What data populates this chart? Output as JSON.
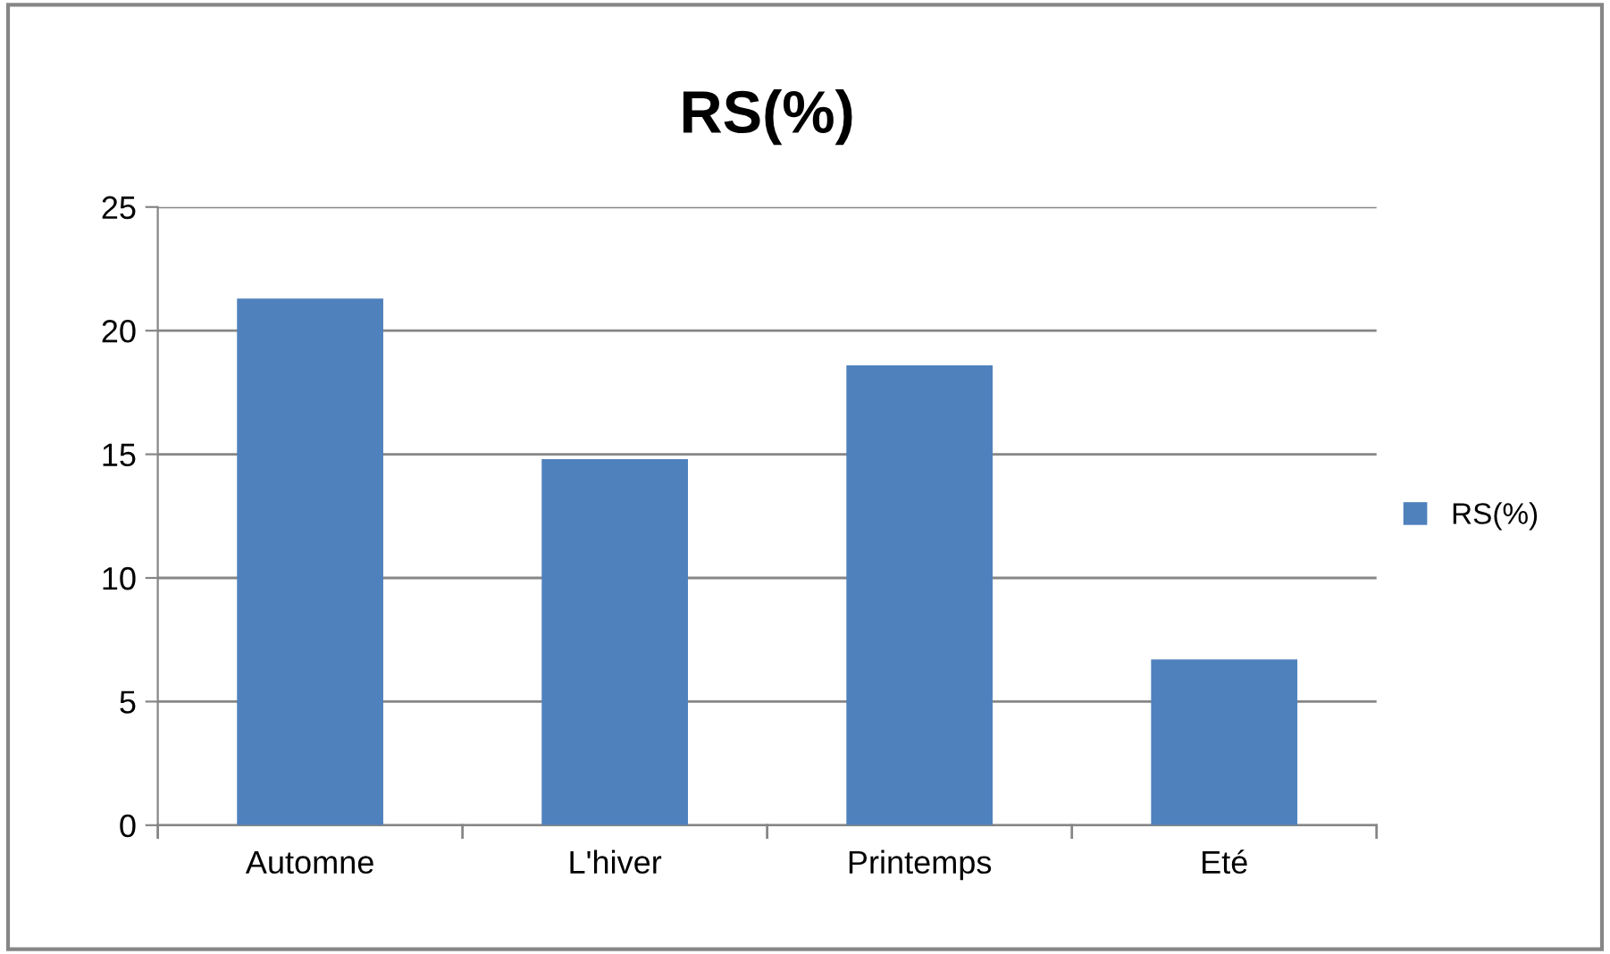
{
  "chart_data": {
    "type": "bar",
    "title": "RS(%)",
    "categories": [
      "Automne",
      "L'hiver",
      "Printemps",
      "Eté"
    ],
    "series": [
      {
        "name": "RS(%)",
        "color": "#4f81bd",
        "values": [
          21.3,
          14.8,
          18.6,
          6.7
        ]
      }
    ],
    "ylim": [
      0,
      25
    ],
    "yticks": [
      0,
      5,
      10,
      15,
      20,
      25
    ],
    "grid": "y",
    "legend": "right"
  }
}
